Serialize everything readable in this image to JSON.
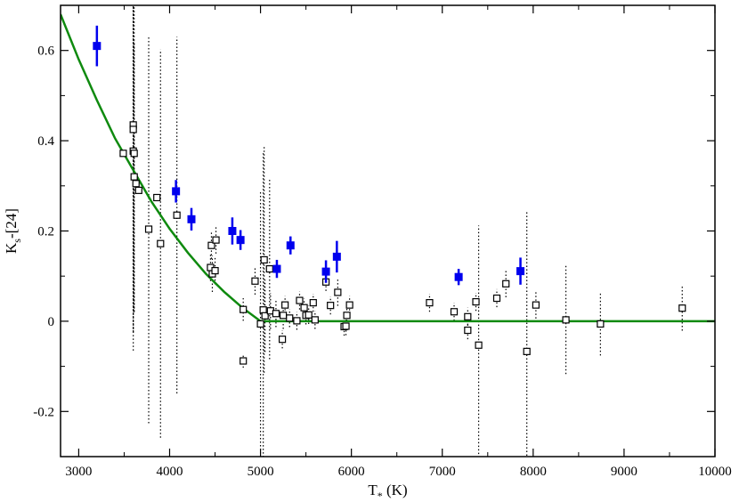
{
  "chart_data": {
    "type": "scatter",
    "title": "",
    "xlabel": {
      "main": "T",
      "sub": "*",
      "unit": " (K)"
    },
    "ylabel": {
      "main": "K",
      "sub": "s",
      "suffix": "-[24]"
    },
    "xlim": [
      2800,
      10000
    ],
    "ylim": [
      -0.3,
      0.7
    ],
    "xticks": [
      3000,
      4000,
      5000,
      6000,
      7000,
      8000,
      9000,
      10000
    ],
    "yticks": [
      -0.2,
      0,
      0.2,
      0.4,
      0.6
    ],
    "ytick_labels": [
      "-0.2",
      "0",
      "0.2",
      "0.4",
      "0.6"
    ],
    "grid": false,
    "legend": "none",
    "colors": {
      "model": "#0f8a0f",
      "highlighted": "#0000ee",
      "sample": "#000000"
    },
    "series": [
      {
        "marker": "filled-square",
        "color": "#0000ee",
        "points": [
          {
            "x": 3200,
            "y": 0.61,
            "err": 0.045
          },
          {
            "x": 4070,
            "y": 0.288,
            "err": 0.025
          },
          {
            "x": 4240,
            "y": 0.226,
            "err": 0.025
          },
          {
            "x": 4690,
            "y": 0.2,
            "err": 0.03
          },
          {
            "x": 4780,
            "y": 0.18,
            "err": 0.022
          },
          {
            "x": 5180,
            "y": 0.116,
            "err": 0.02
          },
          {
            "x": 5330,
            "y": 0.168,
            "err": 0.02
          },
          {
            "x": 5720,
            "y": 0.11,
            "err": 0.025
          },
          {
            "x": 5840,
            "y": 0.143,
            "err": 0.035
          },
          {
            "x": 7180,
            "y": 0.098,
            "err": 0.018
          },
          {
            "x": 7860,
            "y": 0.111,
            "err": 0.03
          }
        ]
      },
      {
        "marker": "open-square",
        "color": "#000000",
        "points": [
          {
            "x": 3490,
            "y": 0.372,
            "err": 0
          },
          {
            "x": 3600,
            "y": 0.435,
            "err": 0.5
          },
          {
            "x": 3600,
            "y": 0.425,
            "err": 0.45
          },
          {
            "x": 3600,
            "y": 0.377,
            "err": 0.4
          },
          {
            "x": 3610,
            "y": 0.372,
            "err": 0.35
          },
          {
            "x": 3610,
            "y": 0.32,
            "err": 0.3
          },
          {
            "x": 3630,
            "y": 0.305,
            "err": 0
          },
          {
            "x": 3660,
            "y": 0.29,
            "err": 0
          },
          {
            "x": 3770,
            "y": 0.204,
            "err": 0.43
          },
          {
            "x": 3860,
            "y": 0.274,
            "err": 0
          },
          {
            "x": 3900,
            "y": 0.172,
            "err": 0.43
          },
          {
            "x": 4080,
            "y": 0.235,
            "err": 0.395
          },
          {
            "x": 4450,
            "y": 0.119,
            "err": 0.03
          },
          {
            "x": 4460,
            "y": 0.168,
            "err": 0.03
          },
          {
            "x": 4470,
            "y": 0.105,
            "err": 0.04
          },
          {
            "x": 4500,
            "y": 0.112,
            "err": 0.03
          },
          {
            "x": 4510,
            "y": 0.18,
            "err": 0.03
          },
          {
            "x": 4810,
            "y": 0.026,
            "err": 0.025
          },
          {
            "x": 4810,
            "y": -0.088,
            "err": 0.015
          },
          {
            "x": 4940,
            "y": 0.089,
            "err": 0.03
          },
          {
            "x": 5000,
            "y": -0.006,
            "err": 0.295
          },
          {
            "x": 5030,
            "y": 0.025,
            "err": 0.35
          },
          {
            "x": 5040,
            "y": 0.136,
            "err": 0.25
          },
          {
            "x": 5050,
            "y": 0.012,
            "err": 0.08
          },
          {
            "x": 5100,
            "y": 0.116,
            "err": 0.2
          },
          {
            "x": 5110,
            "y": 0.023,
            "err": 0.04
          },
          {
            "x": 5170,
            "y": 0.017,
            "err": 0.03
          },
          {
            "x": 5250,
            "y": 0.013,
            "err": 0.03
          },
          {
            "x": 5240,
            "y": -0.04,
            "err": 0.02
          },
          {
            "x": 5270,
            "y": 0.036,
            "err": 0.02
          },
          {
            "x": 5320,
            "y": 0.007,
            "err": 0.02
          },
          {
            "x": 5400,
            "y": 0.001,
            "err": 0.02
          },
          {
            "x": 5430,
            "y": 0.046,
            "err": 0.02
          },
          {
            "x": 5480,
            "y": 0.03,
            "err": 0.02
          },
          {
            "x": 5500,
            "y": 0.013,
            "err": 0.02
          },
          {
            "x": 5530,
            "y": 0.014,
            "err": 0.02
          },
          {
            "x": 5580,
            "y": 0.041,
            "err": 0.02
          },
          {
            "x": 5600,
            "y": 0.003,
            "err": 0.02
          },
          {
            "x": 5720,
            "y": 0.087,
            "err": 0.02
          },
          {
            "x": 5770,
            "y": 0.035,
            "err": 0.02
          },
          {
            "x": 5850,
            "y": 0.064,
            "err": 0.03
          },
          {
            "x": 5920,
            "y": -0.012,
            "err": 0.02
          },
          {
            "x": 5940,
            "y": -0.011,
            "err": 0.02
          },
          {
            "x": 5950,
            "y": 0.013,
            "err": 0.02
          },
          {
            "x": 5980,
            "y": 0.036,
            "err": 0.02
          },
          {
            "x": 6860,
            "y": 0.041,
            "err": 0.02
          },
          {
            "x": 7130,
            "y": 0.021,
            "err": 0.02
          },
          {
            "x": 7280,
            "y": 0.01,
            "err": 0.02
          },
          {
            "x": 7280,
            "y": -0.02,
            "err": 0.02
          },
          {
            "x": 7370,
            "y": 0.043,
            "err": 0.02
          },
          {
            "x": 7400,
            "y": -0.053,
            "err": 0.265
          },
          {
            "x": 7600,
            "y": 0.051,
            "err": 0.02
          },
          {
            "x": 7700,
            "y": 0.083,
            "err": 0.03
          },
          {
            "x": 7930,
            "y": -0.067,
            "err": 0.31
          },
          {
            "x": 8030,
            "y": 0.036,
            "err": 0.03
          },
          {
            "x": 8360,
            "y": 0.003,
            "err": 0.12
          },
          {
            "x": 8740,
            "y": -0.006,
            "err": 0.07
          },
          {
            "x": 9640,
            "y": 0.029,
            "err": 0.05
          }
        ]
      }
    ],
    "curve": {
      "color": "#0f8a0f",
      "x": [
        2800,
        3000,
        3200,
        3400,
        3600,
        3800,
        4000,
        4200,
        4400,
        4600,
        4800,
        5000,
        5200,
        6000,
        7000,
        8000,
        9000,
        10000
      ],
      "y": [
        0.68,
        0.58,
        0.49,
        0.405,
        0.335,
        0.265,
        0.205,
        0.152,
        0.105,
        0.065,
        0.03,
        0.0,
        0.0,
        0.0,
        0.0,
        0.0,
        0.0,
        0.0
      ]
    }
  }
}
